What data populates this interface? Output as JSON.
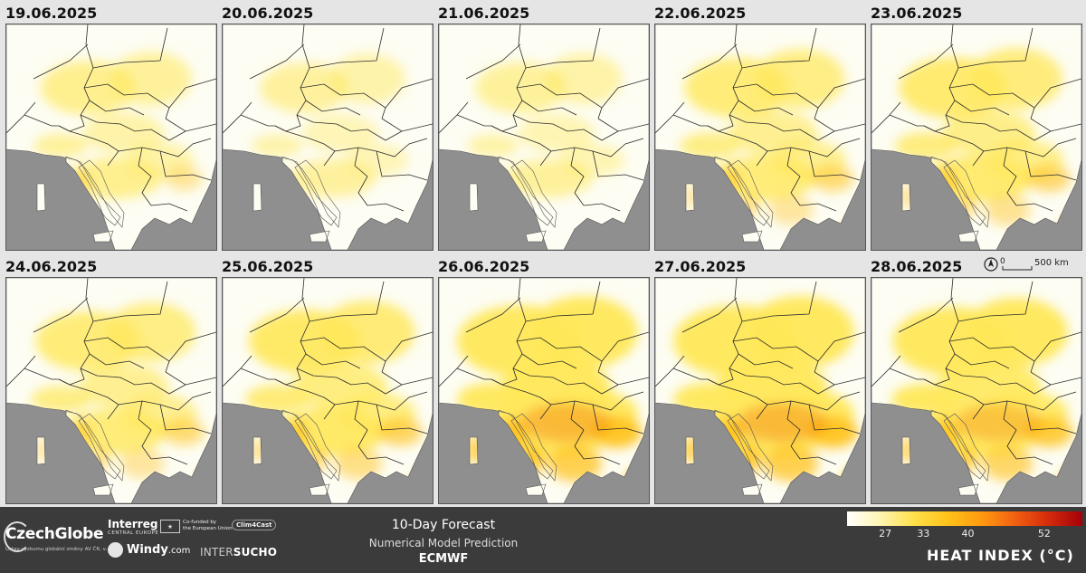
{
  "panels": [
    {
      "date": "19.06.2025",
      "intensity": 0.3
    },
    {
      "date": "20.06.2025",
      "intensity": 0.2
    },
    {
      "date": "21.06.2025",
      "intensity": 0.22
    },
    {
      "date": "22.06.2025",
      "intensity": 0.45
    },
    {
      "date": "23.06.2025",
      "intensity": 0.5
    },
    {
      "date": "24.06.2025",
      "intensity": 0.45
    },
    {
      "date": "25.06.2025",
      "intensity": 0.55
    },
    {
      "date": "26.06.2025",
      "intensity": 0.8
    },
    {
      "date": "27.06.2025",
      "intensity": 0.8
    },
    {
      "date": "28.06.2025",
      "intensity": 0.7
    }
  ],
  "scalebar": {
    "zero": "0",
    "distance": "500 km",
    "icon": "north-arrow-icon"
  },
  "footer": {
    "czechglobe": "CzechGlobe",
    "czechglobe_sub": "Ústav výzkumu globální změny AV ČR, v. v. i.",
    "interreg": "Interreg",
    "interreg_sub": "CENTRAL EUROPE",
    "eu_text_1": "Co-funded by",
    "eu_text_2": "the European Union",
    "clim4cast": "Clim4Cast",
    "windy": "Windy",
    "windy_suffix": ".com",
    "intersucho_1": "INTER",
    "intersucho_2": "SUCHO",
    "forecast_title": "10-Day Forecast",
    "forecast_sub": "Numerical Model Prediction",
    "forecast_model": "ECMWF"
  },
  "legend": {
    "title": "HEAT INDEX (°C)",
    "ticks": [
      {
        "label": "27",
        "value": 27
      },
      {
        "label": "33",
        "value": 33
      },
      {
        "label": "40",
        "value": 40
      },
      {
        "label": "52",
        "value": 52
      }
    ],
    "colors": [
      "#ffffff",
      "#fff4b0",
      "#ffe04a",
      "#ffc21a",
      "#ff9a10",
      "#f06010",
      "#d42a0c",
      "#a4000a"
    ]
  },
  "colors": {
    "sea": "#8f8f8f",
    "land": "#fdfdf3",
    "border": "#2a2a2a",
    "heat_light": "#ffe85a",
    "heat_mid": "#ffc21a",
    "heat_high": "#f58a10"
  }
}
